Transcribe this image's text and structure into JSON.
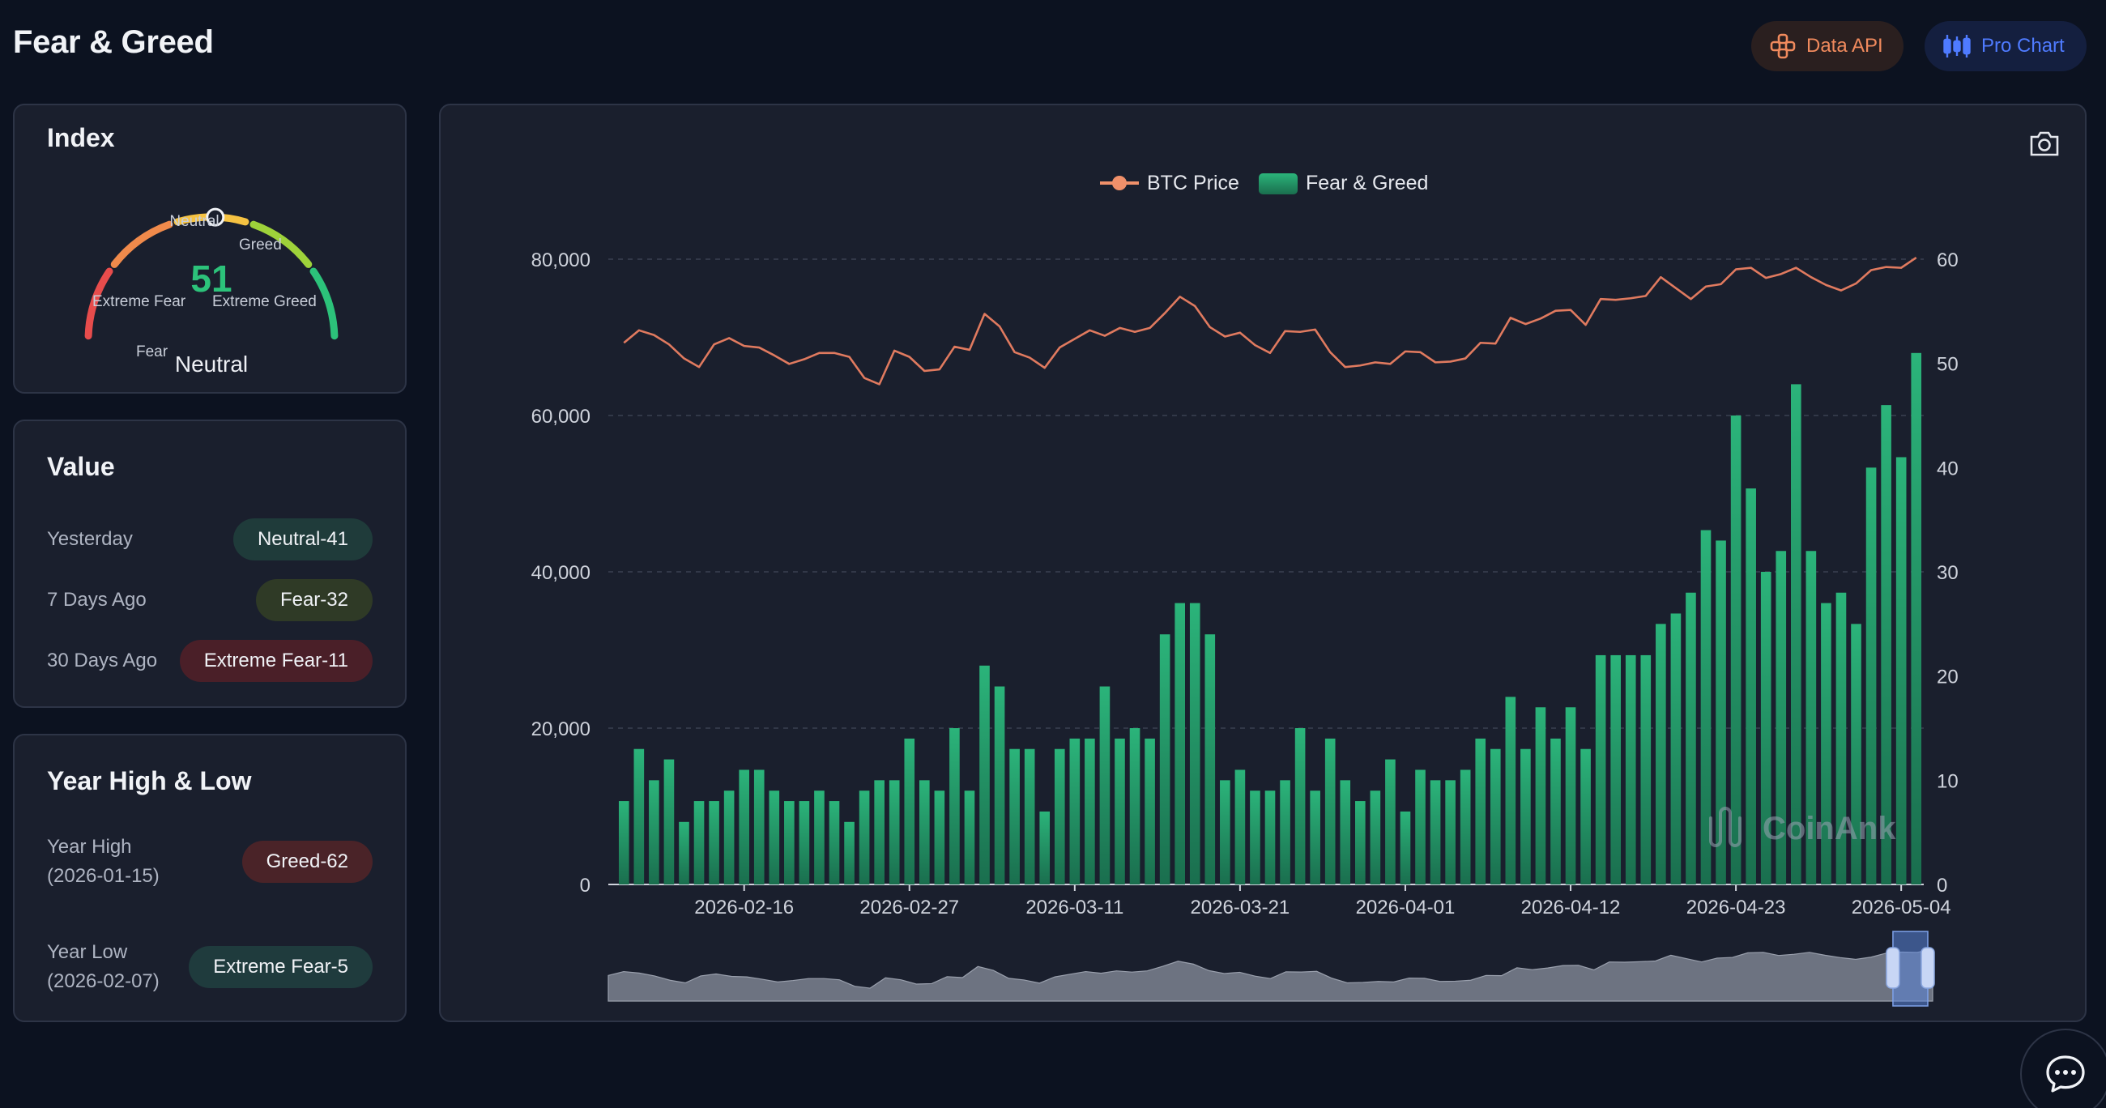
{
  "header": {
    "title": "Fear & Greed",
    "data_api_label": "Data API",
    "pro_chart_label": "Pro Chart"
  },
  "index_card": {
    "title": "Index",
    "value": "51",
    "status": "Neutral",
    "value_fraction": 0.51,
    "labels": {
      "extreme_fear": "Extreme Fear",
      "fear": "Fear",
      "neutral": "Neutral",
      "greed": "Greed",
      "extreme_greed": "Extreme Greed"
    },
    "segment_colors": [
      "#e74c4c",
      "#f08a4b",
      "#f5c242",
      "#9ed23a",
      "#2cc27a"
    ]
  },
  "value_card": {
    "title": "Value",
    "rows": [
      {
        "label": "Yesterday",
        "value": "Neutral-41"
      },
      {
        "label": "7 Days Ago",
        "value": "Fear-32"
      },
      {
        "label": "30 Days Ago",
        "value": "Extreme Fear-11"
      }
    ]
  },
  "year_card": {
    "title": "Year High & Low",
    "high_label": "Year High",
    "high_date": "(2026-01-15)",
    "high_value": "Greed-62",
    "low_label": "Year Low",
    "low_date": "(2026-02-07)",
    "low_value": "Extreme Fear-5"
  },
  "chart_data": {
    "type": "bar",
    "legend": [
      "BTC Price",
      "Fear & Greed"
    ],
    "legend_placement": "top",
    "watermark": "CoinAnk",
    "left_axis": {
      "ticks": [
        "0",
        "20,000",
        "40,000",
        "60,000",
        "80,000"
      ],
      "min": 0,
      "max": 80000
    },
    "right_axis": {
      "ticks": [
        "0",
        "10",
        "20",
        "30",
        "40",
        "50",
        "60"
      ],
      "min": 0,
      "max": 60
    },
    "x_tick_labels": [
      "2026-02-16",
      "2026-02-27",
      "2026-03-11",
      "2026-03-21",
      "2026-04-01",
      "2026-04-12",
      "2026-04-23",
      "2026-05-04"
    ],
    "x_tick_indices": [
      8,
      19,
      30,
      41,
      52,
      63,
      74,
      85
    ],
    "grid": true,
    "series": [
      {
        "name": "Fear & Greed",
        "axis": "right",
        "color": "#2aa36e",
        "values": [
          8,
          13,
          10,
          12,
          6,
          8,
          8,
          9,
          11,
          11,
          9,
          8,
          8,
          9,
          8,
          6,
          9,
          10,
          10,
          14,
          10,
          9,
          15,
          9,
          21,
          19,
          13,
          13,
          7,
          13,
          14,
          14,
          19,
          14,
          15,
          14,
          24,
          27,
          27,
          24,
          10,
          11,
          9,
          9,
          10,
          15,
          9,
          14,
          10,
          8,
          9,
          12,
          7,
          11,
          10,
          10,
          11,
          14,
          13,
          18,
          13,
          17,
          14,
          17,
          13,
          22,
          22,
          22,
          22,
          25,
          26,
          28,
          34,
          33,
          45,
          38,
          30,
          32,
          48,
          32,
          27,
          28,
          25,
          40,
          46,
          41,
          51
        ]
      },
      {
        "name": "BTC Price",
        "axis": "left",
        "color": "#e07a5f",
        "values": [
          69300,
          70900,
          70300,
          69100,
          67300,
          66200,
          69100,
          69900,
          68900,
          68700,
          67700,
          66600,
          67200,
          68000,
          68000,
          67500,
          64800,
          64000,
          68300,
          67500,
          65700,
          65900,
          68800,
          68400,
          73000,
          71400,
          68100,
          67400,
          66100,
          68700,
          69800,
          70900,
          70200,
          71200,
          70700,
          71200,
          73100,
          75200,
          74000,
          71300,
          70100,
          70600,
          69000,
          68000,
          70800,
          70700,
          71000,
          68100,
          66200,
          66400,
          66800,
          66600,
          68200,
          68100,
          66800,
          66900,
          67300,
          69300,
          69200,
          72500,
          71700,
          72400,
          73400,
          73500,
          71600,
          74900,
          74800,
          75000,
          75300,
          77700,
          76300,
          74900,
          76500,
          76800,
          78700,
          78900,
          77600,
          78100,
          78900,
          77700,
          76700,
          76000,
          76900,
          78600,
          79000,
          78900,
          80200
        ]
      }
    ],
    "brush_start": 0.97,
    "brush_end": 1.0
  }
}
